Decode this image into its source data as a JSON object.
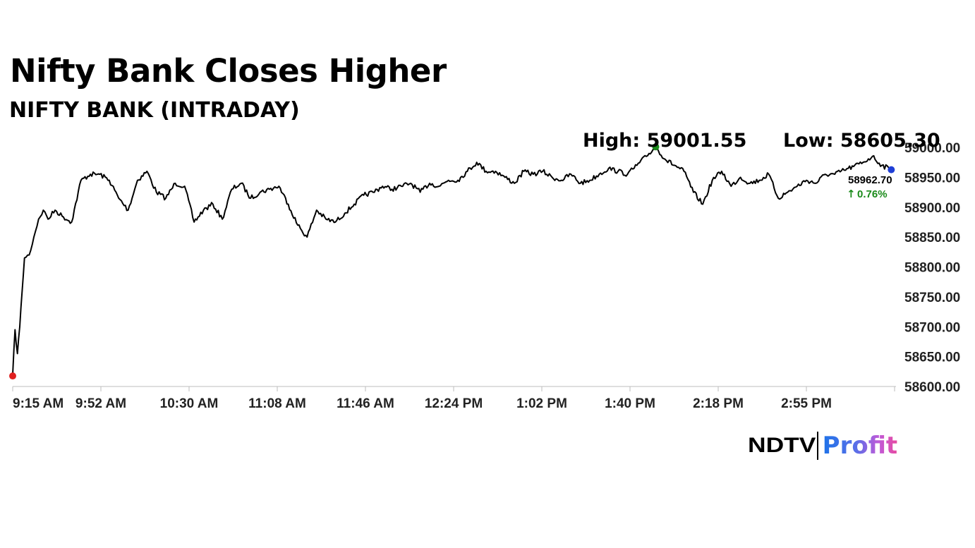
{
  "title": "Nifty Bank Closes Higher",
  "subtitle": "NIFTY BANK (INTRADAY)",
  "brand": {
    "ndtv": "NDTV",
    "profit": "Profit"
  },
  "colors": {
    "line": "#000000",
    "open_marker": "#e02020",
    "high_marker": "#1a8a1a",
    "close_marker": "#1f3fd6",
    "change": "#1a8a1a",
    "axis": "#bdbdbd"
  },
  "chart_data": {
    "type": "line",
    "title": "NIFTY BANK (INTRADAY)",
    "xlabel": "",
    "ylabel": "",
    "ylim": [
      58600,
      59000
    ],
    "y_ticks": [
      "59000.00",
      "58950.00",
      "58900.00",
      "58850.00",
      "58800.00",
      "58750.00",
      "58700.00",
      "58650.00",
      "58600.00"
    ],
    "x_ticks": [
      "9:15 AM",
      "9:52 AM",
      "10:30 AM",
      "11:08 AM",
      "11:46 AM",
      "12:24 PM",
      "1:02 PM",
      "1:40 PM",
      "2:18 PM",
      "2:55 PM"
    ],
    "high_label": "High: 59001.55",
    "low_label": "Low: 58605.30",
    "last_value": "58962.70",
    "change": "0.76%",
    "change_arrow": "↑",
    "series": [
      {
        "x": [
          "9:15",
          "9:16",
          "9:17",
          "9:18",
          "9:19",
          "9:20",
          "9:22",
          "9:24",
          "9:26",
          "9:28",
          "9:30",
          "9:33",
          "9:36",
          "9:40",
          "9:44",
          "9:48",
          "9:52",
          "9:56",
          "10:00",
          "10:04",
          "10:08",
          "10:12",
          "10:16",
          "10:20",
          "10:24",
          "10:28",
          "10:32",
          "10:36",
          "10:40",
          "10:44",
          "10:48",
          "10:52",
          "10:56",
          "11:00",
          "11:04",
          "11:08",
          "11:12",
          "11:16",
          "11:20",
          "11:24",
          "11:28",
          "11:32",
          "11:36",
          "11:40",
          "11:44",
          "11:48",
          "11:52",
          "11:56",
          "12:00",
          "12:04",
          "12:08",
          "12:12",
          "12:16",
          "12:20",
          "12:24",
          "12:28",
          "12:32",
          "12:36",
          "12:40",
          "12:44",
          "12:48",
          "12:52",
          "12:56",
          "13:00",
          "13:04",
          "13:08",
          "13:12",
          "13:16",
          "13:20",
          "13:24",
          "13:28",
          "13:32",
          "13:36",
          "13:40",
          "13:44",
          "13:48",
          "13:52",
          "13:56",
          "14:00",
          "14:04",
          "14:08",
          "14:12",
          "14:16",
          "14:20",
          "14:24",
          "14:28",
          "14:32",
          "14:36",
          "14:40",
          "14:44",
          "14:48",
          "14:52",
          "14:56",
          "15:00",
          "15:04",
          "15:08",
          "15:12",
          "15:16",
          "15:20",
          "15:24",
          "15:28"
        ],
        "y": [
          58620,
          58695,
          58655,
          58700,
          58760,
          58815,
          58820,
          58850,
          58880,
          58895,
          58880,
          58895,
          58885,
          58875,
          58945,
          58955,
          58955,
          58945,
          58915,
          58895,
          58945,
          58960,
          58925,
          58915,
          58940,
          58935,
          58875,
          58895,
          58905,
          58880,
          58930,
          58940,
          58915,
          58925,
          58930,
          58935,
          58905,
          58870,
          58850,
          58895,
          58880,
          58875,
          58890,
          58905,
          58920,
          58925,
          58935,
          58930,
          58935,
          58940,
          58925,
          58940,
          58935,
          58945,
          58945,
          58960,
          58975,
          58960,
          58960,
          58950,
          58940,
          58960,
          58955,
          58960,
          58950,
          58945,
          58955,
          58940,
          58945,
          58955,
          58965,
          58960,
          58955,
          58970,
          58985,
          59001,
          58980,
          58970,
          58960,
          58925,
          58905,
          58945,
          58960,
          58935,
          58950,
          58940,
          58945,
          58955,
          58915,
          58925,
          58935,
          58945,
          58940,
          58955,
          58955,
          58962,
          58968,
          58975,
          58985,
          58970,
          58962.7
        ]
      }
    ]
  }
}
